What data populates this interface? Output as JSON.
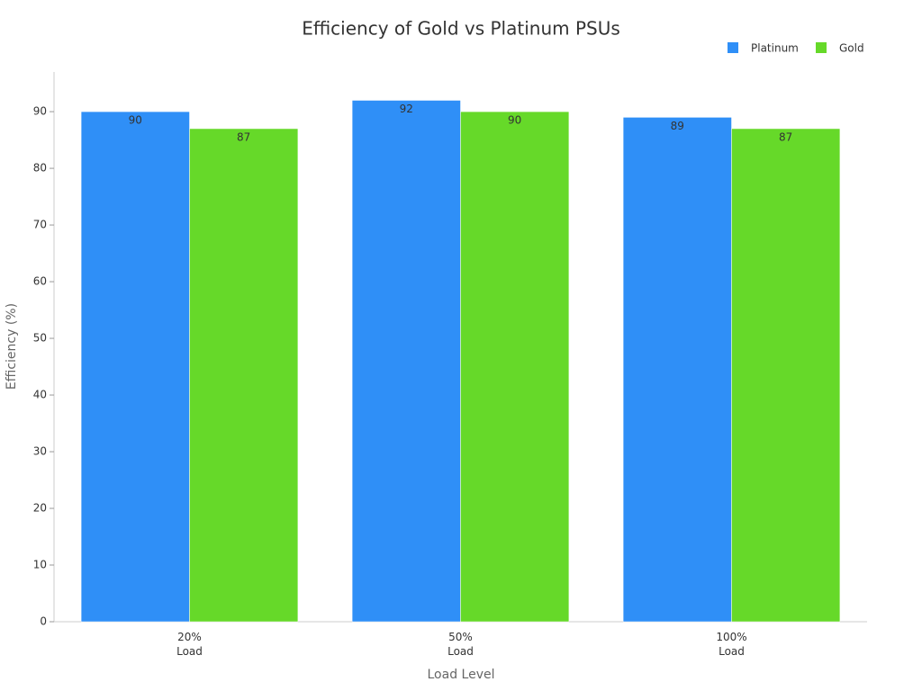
{
  "chart_data": {
    "type": "bar",
    "title": "Efficiency of Gold vs Platinum PSUs",
    "x_label": "Load Level",
    "y_label": "Efficiency (%)",
    "categories": [
      "20%\nLoad",
      "50%\nLoad",
      "100%\nLoad"
    ],
    "series": [
      {
        "name": "Platinum",
        "color": "#2f8ff7",
        "values": [
          90,
          92,
          89
        ]
      },
      {
        "name": "Gold",
        "color": "#66d929",
        "values": [
          87,
          90,
          87
        ]
      }
    ],
    "ylim": [
      0,
      97
    ],
    "yticks": [
      0,
      10,
      20,
      30,
      40,
      50,
      60,
      70,
      80,
      90
    ],
    "grid": false,
    "legend": "top-right"
  }
}
